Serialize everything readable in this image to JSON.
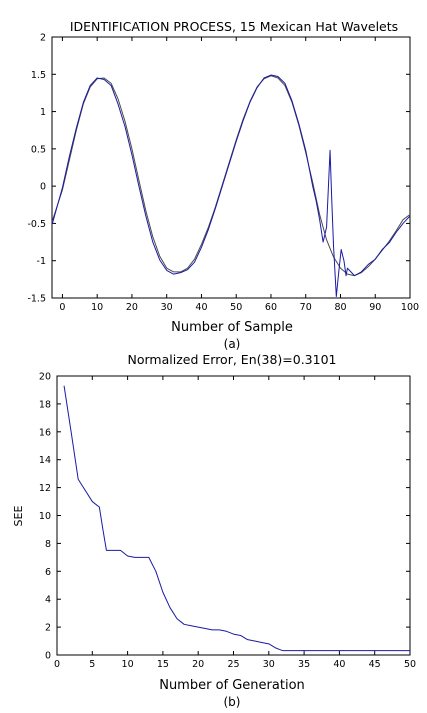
{
  "chart_data": [
    {
      "type": "line",
      "title": "IDENTIFICATION PROCESS, 15 Mexican Hat Wavelets",
      "xlabel": "Number of Sample",
      "ylabel": "",
      "caption": "(a)",
      "xlim": [
        -3,
        100
      ],
      "ylim": [
        -1.5,
        2
      ],
      "xticks": [
        0,
        10,
        20,
        30,
        40,
        50,
        60,
        70,
        80,
        90,
        100
      ],
      "yticks": [
        -1.5,
        -1,
        -0.5,
        0,
        0.5,
        1,
        1.5,
        2
      ],
      "xtick_labels": [
        "0",
        "10",
        "20",
        "30",
        "40",
        "50",
        "60",
        "70",
        "80",
        "90",
        "100"
      ],
      "ytick_labels": [
        "-1.5",
        "-1",
        "-0.5",
        "0",
        "0.5",
        "1",
        "1.5",
        "2"
      ],
      "grid": false,
      "series": [
        {
          "role": "target",
          "color": "#4a4a4a",
          "x": [
            -3,
            0,
            2,
            4,
            6,
            8,
            10,
            12,
            14,
            16,
            18,
            20,
            22,
            24,
            26,
            28,
            30,
            32,
            34,
            36,
            38,
            40,
            42,
            44,
            46,
            48,
            50,
            52,
            54,
            56,
            58,
            60,
            62,
            64,
            66,
            68,
            70,
            72,
            74,
            76,
            78,
            80,
            82,
            84,
            86,
            88,
            90,
            92,
            94,
            96,
            98,
            100
          ],
          "y": [
            -0.48,
            -0.05,
            0.35,
            0.75,
            1.1,
            1.33,
            1.44,
            1.45,
            1.38,
            1.17,
            0.87,
            0.5,
            0.08,
            -0.33,
            -0.68,
            -0.94,
            -1.1,
            -1.15,
            -1.15,
            -1.1,
            -0.98,
            -0.78,
            -0.55,
            -0.28,
            0.02,
            0.32,
            0.62,
            0.9,
            1.14,
            1.33,
            1.44,
            1.48,
            1.45,
            1.35,
            1.13,
            0.82,
            0.45,
            0.05,
            -0.38,
            -0.72,
            -0.95,
            -1.1,
            -1.18,
            -1.2,
            -1.16,
            -1.08,
            -0.98,
            -0.86,
            -0.74,
            -0.6,
            -0.45,
            -0.38
          ]
        },
        {
          "role": "identified",
          "color": "#1a1aa6",
          "x": [
            -3,
            0,
            2,
            4,
            6,
            8,
            10,
            12,
            14,
            16,
            18,
            20,
            22,
            24,
            26,
            28,
            30,
            32,
            34,
            36,
            38,
            40,
            42,
            44,
            46,
            48,
            50,
            52,
            54,
            56,
            58,
            60,
            62,
            64,
            66,
            68,
            70,
            72,
            73,
            74,
            75,
            76,
            77,
            77.5,
            78,
            78.8,
            79.5,
            80.2,
            81,
            81.6,
            82,
            83,
            84,
            86,
            88,
            90,
            92,
            94,
            96,
            98,
            100
          ],
          "y": [
            -0.52,
            -0.02,
            0.4,
            0.78,
            1.12,
            1.35,
            1.45,
            1.43,
            1.35,
            1.1,
            0.8,
            0.42,
            0.0,
            -0.4,
            -0.75,
            -0.99,
            -1.13,
            -1.18,
            -1.16,
            -1.12,
            -1.02,
            -0.82,
            -0.58,
            -0.3,
            0.0,
            0.3,
            0.6,
            0.88,
            1.13,
            1.32,
            1.45,
            1.49,
            1.47,
            1.38,
            1.15,
            0.84,
            0.48,
            0.0,
            -0.2,
            -0.45,
            -0.75,
            -0.55,
            0.48,
            -0.2,
            -0.8,
            -1.48,
            -1.15,
            -0.85,
            -1.0,
            -1.2,
            -1.1,
            -1.15,
            -1.2,
            -1.15,
            -1.05,
            -0.98,
            -0.85,
            -0.76,
            -0.62,
            -0.5,
            -0.4
          ]
        }
      ]
    },
    {
      "type": "line",
      "title": "Normalized Error, En(38)=0.3101",
      "xlabel": "Number of Generation",
      "ylabel": "SEE",
      "caption": "(b)",
      "xlim": [
        0,
        50
      ],
      "ylim": [
        0,
        20
      ],
      "xticks": [
        0,
        5,
        10,
        15,
        20,
        25,
        30,
        35,
        40,
        45,
        50
      ],
      "yticks": [
        0,
        2,
        4,
        6,
        8,
        10,
        12,
        14,
        16,
        18,
        20
      ],
      "xtick_labels": [
        "0",
        "5",
        "10",
        "15",
        "20",
        "25",
        "30",
        "35",
        "40",
        "45",
        "50"
      ],
      "ytick_labels": [
        "0",
        "2",
        "4",
        "6",
        "8",
        "10",
        "12",
        "14",
        "16",
        "18",
        "20"
      ],
      "grid": false,
      "series": [
        {
          "color": "#1a1aa6",
          "x": [
            1,
            2,
            3,
            4,
            5,
            6,
            6.5,
            7,
            8,
            9,
            10,
            11,
            12,
            13,
            14,
            15,
            16,
            17,
            18,
            19,
            20,
            21,
            22,
            23,
            24,
            25,
            26,
            27,
            28,
            29,
            30,
            31,
            31.5,
            32,
            35,
            40,
            45,
            50
          ],
          "y": [
            19.3,
            16.0,
            12.6,
            11.8,
            11.0,
            10.6,
            9.0,
            7.5,
            7.5,
            7.5,
            7.1,
            7.0,
            7.0,
            7.0,
            6.0,
            4.5,
            3.4,
            2.6,
            2.2,
            2.1,
            2.0,
            1.9,
            1.8,
            1.8,
            1.7,
            1.5,
            1.4,
            1.1,
            1.0,
            0.9,
            0.8,
            0.5,
            0.4,
            0.31,
            0.31,
            0.31,
            0.31,
            0.31
          ]
        }
      ]
    }
  ]
}
